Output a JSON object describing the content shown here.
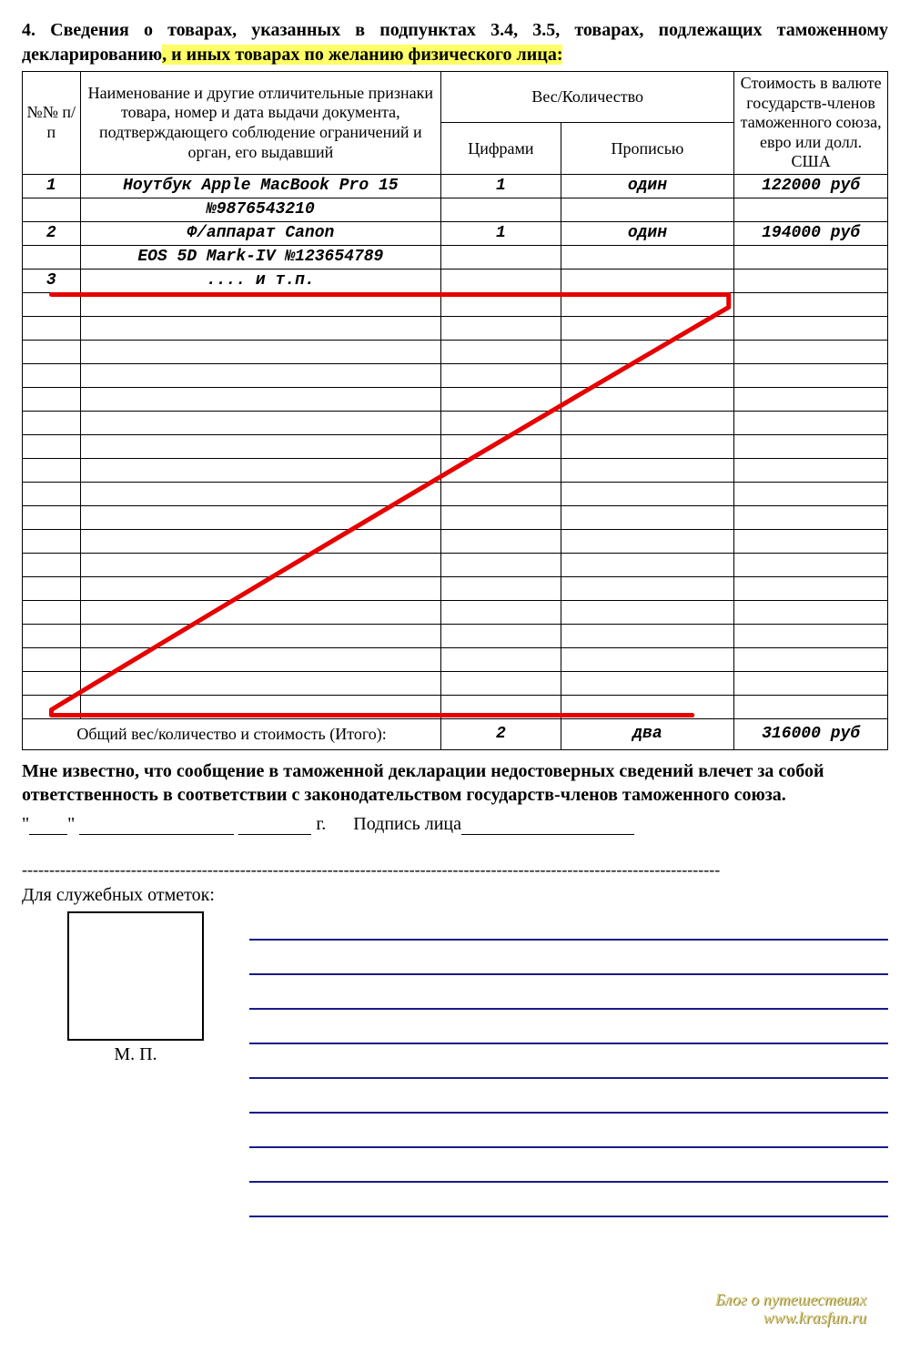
{
  "section": {
    "prefix": "4. Сведения о товарах, указанных в подпунктах 3.4, 3.5, товарах, подлежащих таможенному декларированию",
    "highlighted": ", и иных товарах по желанию физического лица:"
  },
  "headers": {
    "num": "№№ п/п",
    "name": "Наименование и другие отличительные признаки товара, номер и дата выдачи документа, подтверждающего соблюдение ограничений  и орган, его выдавший",
    "weight_qty": "Вес/Количество",
    "digits": "Цифрами",
    "words": "Прописью",
    "cost": "Стоимость в валюте государств-членов таможенного союза, евро или долл. США"
  },
  "rows": [
    {
      "num": "1",
      "name": "Ноутбук Apple MacBook Pro 15",
      "qty": "1",
      "word": "один",
      "cost": "122000 руб"
    },
    {
      "num": "",
      "name": "№9876543210",
      "qty": "",
      "word": "",
      "cost": ""
    },
    {
      "num": "2",
      "name": "Ф/аппарат Canon",
      "qty": "1",
      "word": "один",
      "cost": "194000 руб"
    },
    {
      "num": "",
      "name": "EOS 5D Mark-IV №123654789",
      "qty": "",
      "word": "",
      "cost": ""
    },
    {
      "num": "3",
      "name": ".... и т.п.",
      "qty": "",
      "word": "",
      "cost": ""
    }
  ],
  "empty_row_count": 18,
  "total": {
    "label": "Общий вес/количество и стоимость (Итого):",
    "qty": "2",
    "word": "два",
    "cost": "316000 руб"
  },
  "notice": "Мне известно, что сообщение в таможенной декларации недостоверных сведений влечет за собой ответственность в соответствии с законодательством государств-членов таможенного союза.",
  "dateline": {
    "g": "г.",
    "sign": "Подпись лица"
  },
  "service": {
    "label": "Для служебных отметок:",
    "mp": "М. П."
  },
  "service_line_count": 9,
  "watermark": {
    "l1": "Блог о путешествиях",
    "l2": "www.krasfun.ru"
  },
  "zmark": {
    "color": "#e60000",
    "stroke": 5
  }
}
